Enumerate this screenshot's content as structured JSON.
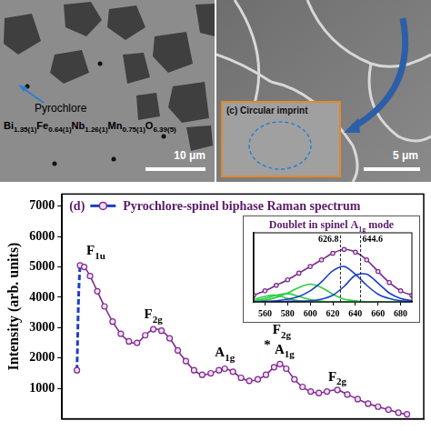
{
  "images": [
    {
      "labels": [
        "Pyrochlore",
        "Bi1.35(1)Fe0.64(1)Nb1.26(1)Mn0.75(1)O6.39(5)"
      ],
      "scale_bar": "10 μm"
    },
    {
      "inset_label": "(c) Circular imprint",
      "scale_bar": "5 μm"
    }
  ],
  "chart_data": [
    {
      "type": "line",
      "panel": "(d)",
      "title": "Pyrochlore-spinel biphase Raman spectrum",
      "y_label": "Intensity (arb. units)",
      "x": [
        183,
        190,
        199,
        212,
        228,
        244,
        262,
        280,
        298,
        316,
        334,
        352,
        370,
        388,
        406,
        424,
        442,
        460,
        479,
        497,
        510,
        528,
        546,
        564,
        583,
        601,
        619,
        632,
        646,
        664,
        682,
        700,
        718,
        736,
        759,
        781,
        804,
        827,
        849,
        872,
        894,
        913
      ],
      "series": [
        {
          "color": "#7d2a8c",
          "marker": "circle",
          "line_style": "solid",
          "values": [
            1600,
            5050,
            5000,
            4700,
            4200,
            3700,
            3200,
            2800,
            2550,
            2500,
            2750,
            2950,
            2900,
            2650,
            2250,
            1900,
            1600,
            1450,
            1500,
            1600,
            1650,
            1550,
            1350,
            1250,
            1300,
            1450,
            1700,
            1800,
            1650,
            1300,
            1050,
            900,
            850,
            900,
            950,
            800,
            650,
            500,
            400,
            300,
            200,
            150
          ]
        }
      ],
      "xlim": [
        150,
        950
      ],
      "ylim": [
        0,
        7400
      ],
      "yticks": [
        1000,
        2000,
        3000,
        4000,
        5000,
        6000,
        7000
      ],
      "tick_labels": "y",
      "grid": false,
      "annotations": [
        {
          "text": "F1u",
          "x": 225,
          "y": 5250
        },
        {
          "text": "F2g",
          "x": 352,
          "y": 3150
        },
        {
          "text": "A1g",
          "x": 510,
          "y": 1900
        },
        {
          "text": "F2g",
          "x": 636,
          "y": 2650
        },
        {
          "text": "*",
          "x": 604,
          "y": 2150
        },
        {
          "text": "A1g",
          "x": 642,
          "y": 2000
        },
        {
          "text": "F2g",
          "x": 759,
          "y": 1100
        }
      ]
    },
    {
      "type": "line",
      "title": "Doublet in spinel A1g mode",
      "x": [
        550,
        560,
        570,
        580,
        590,
        600,
        610,
        620,
        630,
        640,
        650,
        660,
        670,
        680,
        690
      ],
      "series": [
        {
          "color": "#7d2a8c",
          "marker": "circle",
          "line_style": "solid",
          "values": [
            12,
            20,
            30,
            40,
            52,
            64,
            76,
            88,
            95,
            90,
            76,
            55,
            35,
            20,
            12
          ]
        },
        {
          "color": "#2ecc40",
          "marker": "none",
          "line_style": "solid",
          "values": [
            4,
            10,
            12,
            6,
            2,
            1,
            0,
            0,
            0,
            0,
            0,
            0,
            0,
            0,
            0
          ]
        },
        {
          "color": "#2ecc40",
          "marker": "none",
          "line_style": "solid",
          "values": [
            2,
            6,
            12,
            15,
            10,
            4,
            1,
            0,
            0,
            0,
            0,
            0,
            0,
            0,
            0
          ]
        },
        {
          "color": "#2ecc40",
          "marker": "none",
          "line_style": "solid",
          "values": [
            1,
            3,
            8,
            16,
            26,
            32,
            26,
            14,
            5,
            2,
            0,
            0,
            0,
            0,
            0
          ]
        },
        {
          "color": "#1c3fc4",
          "marker": "none",
          "line_style": "solid",
          "values": [
            0,
            1,
            2,
            5,
            10,
            20,
            36,
            56,
            64,
            50,
            30,
            14,
            6,
            2,
            1
          ]
        },
        {
          "color": "#1c3fc4",
          "marker": "none",
          "line_style": "solid",
          "values": [
            0,
            0,
            0,
            1,
            1,
            2,
            5,
            12,
            28,
            48,
            50,
            34,
            16,
            6,
            2
          ]
        }
      ],
      "xlim": [
        550,
        690
      ],
      "xticks": [
        560,
        580,
        600,
        620,
        640,
        660,
        680
      ],
      "ylim": [
        0,
        125
      ],
      "tick_labels": "x",
      "grid": false,
      "peak_positions": [
        626.8,
        644.6
      ]
    }
  ]
}
